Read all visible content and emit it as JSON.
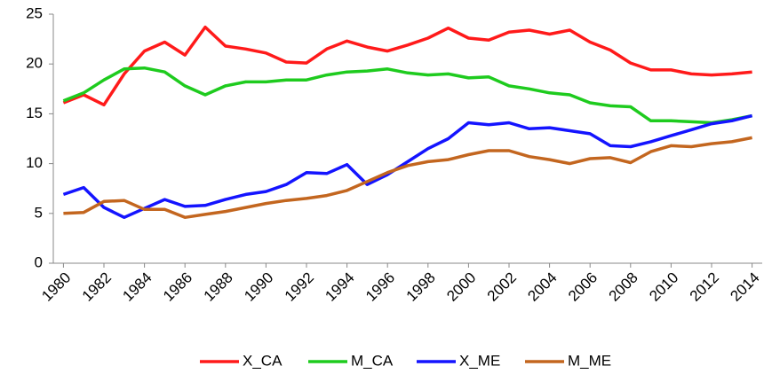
{
  "chart_data": {
    "type": "line",
    "x": [
      1980,
      1981,
      1982,
      1983,
      1984,
      1985,
      1986,
      1987,
      1988,
      1989,
      1990,
      1991,
      1992,
      1993,
      1994,
      1995,
      1996,
      1997,
      1998,
      1999,
      2000,
      2001,
      2002,
      2003,
      2004,
      2005,
      2006,
      2007,
      2008,
      2009,
      2010,
      2011,
      2012,
      2013,
      2014
    ],
    "series": [
      {
        "name": "X_CA",
        "color": "#ff1a1a",
        "values": [
          16.1,
          16.9,
          15.9,
          19.0,
          21.3,
          22.2,
          20.9,
          23.7,
          21.8,
          21.5,
          21.1,
          20.2,
          20.1,
          21.5,
          22.3,
          21.7,
          21.3,
          21.9,
          22.6,
          23.6,
          22.6,
          22.4,
          23.2,
          23.4,
          23.0,
          23.4,
          22.2,
          21.4,
          20.1,
          19.4,
          19.4,
          19.0,
          18.9,
          19.0,
          19.2
        ]
      },
      {
        "name": "M_CA",
        "color": "#1ecb1e",
        "values": [
          16.3,
          17.1,
          18.4,
          19.5,
          19.6,
          19.2,
          17.8,
          16.9,
          17.8,
          18.2,
          18.2,
          18.4,
          18.4,
          18.9,
          19.2,
          19.3,
          19.5,
          19.1,
          18.9,
          19.0,
          18.6,
          18.7,
          17.8,
          17.5,
          17.1,
          16.9,
          16.1,
          15.8,
          15.7,
          14.3,
          14.3,
          14.2,
          14.1,
          14.4,
          14.8
        ]
      },
      {
        "name": "X_ME",
        "color": "#1414ff",
        "values": [
          6.9,
          7.6,
          5.6,
          4.6,
          5.5,
          6.4,
          5.7,
          5.8,
          6.4,
          6.9,
          7.2,
          7.9,
          9.1,
          9.0,
          9.9,
          7.9,
          8.9,
          10.2,
          11.5,
          12.5,
          14.1,
          13.9,
          14.1,
          13.5,
          13.6,
          13.3,
          13.0,
          11.8,
          11.7,
          12.2,
          12.8,
          13.4,
          14.0,
          14.3,
          14.8
        ]
      },
      {
        "name": "M_ME",
        "color": "#c3661f",
        "values": [
          5.0,
          5.1,
          6.2,
          6.3,
          5.4,
          5.4,
          4.6,
          4.9,
          5.2,
          5.6,
          6.0,
          6.3,
          6.5,
          6.8,
          7.3,
          8.2,
          9.1,
          9.8,
          10.2,
          10.4,
          10.9,
          11.3,
          11.3,
          10.7,
          10.4,
          10.0,
          10.5,
          10.6,
          10.1,
          11.2,
          11.8,
          11.7,
          12.0,
          12.2,
          12.6
        ]
      }
    ],
    "xlim": [
      1979.5,
      2014.5
    ],
    "xticks": [
      1980,
      1982,
      1984,
      1986,
      1988,
      1990,
      1992,
      1994,
      1996,
      1998,
      2000,
      2002,
      2004,
      2006,
      2008,
      2010,
      2012,
      2014
    ],
    "ylim": [
      0,
      25
    ],
    "yticks": [
      0,
      5,
      10,
      15,
      20,
      25
    ],
    "grid": false,
    "legend": "bottom"
  }
}
